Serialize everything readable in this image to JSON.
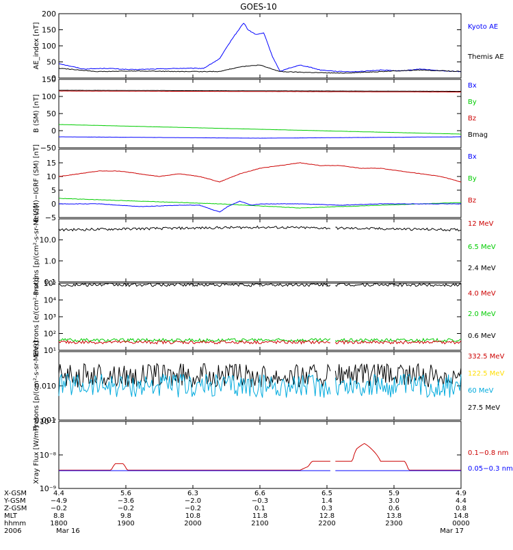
{
  "title": "GOES-10",
  "chart_data": [
    {
      "type": "line",
      "ylabel": "AE_index [nT]",
      "ylim": [
        0,
        200
      ],
      "yticks": [
        "0",
        "50",
        "100",
        "150",
        "200"
      ],
      "legend": [
        {
          "label": "Kyoto AE",
          "color": "#0000ff"
        },
        {
          "label": "Themis AE",
          "color": "#000000"
        }
      ],
      "series": [
        {
          "name": "Kyoto AE",
          "color": "#0000ff",
          "x": [
            0,
            0.06,
            0.12,
            0.18,
            0.24,
            0.3,
            0.36,
            0.4,
            0.43,
            0.46,
            0.47,
            0.49,
            0.51,
            0.53,
            0.55,
            0.57,
            0.6,
            0.62,
            0.65,
            0.7,
            0.75,
            0.8,
            0.85,
            0.9,
            0.95,
            1.0
          ],
          "y": [
            45,
            28,
            30,
            26,
            28,
            30,
            30,
            60,
            120,
            172,
            150,
            135,
            140,
            70,
            20,
            30,
            40,
            35,
            25,
            20,
            20,
            25,
            22,
            28,
            22,
            20
          ]
        },
        {
          "name": "Themis AE",
          "color": "#000000",
          "x": [
            0,
            0.1,
            0.2,
            0.3,
            0.4,
            0.45,
            0.5,
            0.55,
            0.6,
            0.7,
            0.8,
            0.9,
            1.0
          ],
          "y": [
            30,
            20,
            22,
            20,
            20,
            35,
            40,
            20,
            18,
            15,
            20,
            25,
            20
          ]
        }
      ]
    },
    {
      "type": "line",
      "ylabel": "B (SM) [nT]",
      "ylim": [
        -50,
        150
      ],
      "yticks": [
        "−50",
        "0",
        "50",
        "100",
        "150"
      ],
      "legend": [
        {
          "label": "Bx",
          "color": "#0000ff"
        },
        {
          "label": "By",
          "color": "#00cc00"
        },
        {
          "label": "Bz",
          "color": "#cc0000"
        },
        {
          "label": "Bmag",
          "color": "#000000"
        }
      ],
      "series": [
        {
          "name": "Bmag",
          "color": "#000000",
          "x": [
            0,
            1
          ],
          "y": [
            118,
            115
          ]
        },
        {
          "name": "Bz",
          "color": "#cc0000",
          "x": [
            0,
            1
          ],
          "y": [
            116,
            113
          ]
        },
        {
          "name": "By",
          "color": "#00cc00",
          "x": [
            0,
            1
          ],
          "y": [
            18,
            -10
          ]
        },
        {
          "name": "Bx",
          "color": "#0000ff",
          "x": [
            0,
            0.5,
            1
          ],
          "y": [
            -18,
            -22,
            -18
          ]
        }
      ]
    },
    {
      "type": "line",
      "ylabel": "B (SM)−IGRF (SM) [nT]",
      "ylim": [
        -5,
        20
      ],
      "yticks": [
        "−5",
        "0",
        "5",
        "10",
        "15"
      ],
      "legend": [
        {
          "label": "Bx",
          "color": "#0000ff"
        },
        {
          "label": "By",
          "color": "#00cc00"
        },
        {
          "label": "Bz",
          "color": "#cc0000"
        }
      ],
      "series": [
        {
          "name": "Bz",
          "color": "#cc0000",
          "x": [
            0,
            0.05,
            0.1,
            0.15,
            0.2,
            0.25,
            0.3,
            0.35,
            0.4,
            0.45,
            0.5,
            0.55,
            0.6,
            0.65,
            0.7,
            0.75,
            0.8,
            0.85,
            0.9,
            0.95,
            1.0
          ],
          "y": [
            10,
            11,
            12,
            12,
            11,
            10,
            11,
            10,
            8,
            11,
            13,
            14,
            15,
            14,
            14,
            13,
            13,
            12,
            11,
            10,
            8
          ]
        },
        {
          "name": "By",
          "color": "#00cc00",
          "x": [
            0,
            0.2,
            0.4,
            0.6,
            0.8,
            1.0
          ],
          "y": [
            2,
            1,
            0,
            -1.5,
            -0.5,
            0.5
          ]
        },
        {
          "name": "Bx",
          "color": "#0000ff",
          "x": [
            0,
            0.1,
            0.2,
            0.3,
            0.35,
            0.38,
            0.4,
            0.42,
            0.45,
            0.48,
            0.5,
            0.6,
            0.7,
            0.8,
            1.0
          ],
          "y": [
            0,
            0,
            -1,
            -0.5,
            -0.5,
            -2,
            -3,
            -1,
            1,
            -0.5,
            0,
            0,
            -0.5,
            0,
            0
          ]
        }
      ]
    },
    {
      "type": "line",
      "ylabel": "Protons [p/(cm²-s-sr-MeV)]",
      "yscale": "log",
      "ylim": [
        0.1,
        100
      ],
      "yticks": [
        "0.1",
        "1.0",
        "10.0"
      ],
      "legend": [
        {
          "label": "12 MeV",
          "color": "#cc0000"
        },
        {
          "label": "6.5 MeV",
          "color": "#00cc00"
        },
        {
          "label": "2.4 MeV",
          "color": "#000000"
        }
      ],
      "series": [
        {
          "name": "2.4 MeV",
          "color": "#000000",
          "x": [
            0,
            0.25,
            0.5,
            0.75,
            1.0
          ],
          "y": [
            30,
            35,
            40,
            35,
            30
          ]
        }
      ]
    },
    {
      "type": "line",
      "ylabel": "Electrons [e/(cm²-s-sr)]",
      "yscale": "log",
      "ylim": [
        10,
        100000
      ],
      "yticks": [
        "10¹",
        "10²",
        "10³",
        "10⁴",
        "10⁵"
      ],
      "legend": [
        {
          "label": "4.0 MeV",
          "color": "#cc0000"
        },
        {
          "label": "2.0 MeV",
          "color": "#00cc00"
        },
        {
          "label": "0.6 MeV",
          "color": "#000000"
        }
      ],
      "series": [
        {
          "name": "0.6 MeV",
          "color": "#000000",
          "x": [
            0,
            1
          ],
          "y": [
            80000,
            80000
          ]
        },
        {
          "name": "2.0 MeV",
          "color": "#00cc00",
          "x": [
            0,
            1
          ],
          "y": [
            40,
            40
          ]
        },
        {
          "name": "4.0 MeV",
          "color": "#cc0000",
          "x": [
            0,
            1
          ],
          "y": [
            30,
            30
          ]
        }
      ]
    },
    {
      "type": "line",
      "ylabel": "Protons [p/(cm²-s-sr-MeV)]",
      "yscale": "log",
      "ylim": [
        0.001,
        0.1
      ],
      "yticks": [
        "0.001",
        "0.010"
      ],
      "legend": [
        {
          "label": "332.5 MeV",
          "color": "#cc0000"
        },
        {
          "label": "122.5 MeV",
          "color": "#ffdd00"
        },
        {
          "label": "60 MeV",
          "color": "#00aadd"
        },
        {
          "label": "27.5 MeV",
          "color": "#000000"
        }
      ],
      "series": [
        {
          "name": "27.5 MeV",
          "color": "#000000",
          "x": [
            0,
            1
          ],
          "y": [
            0.02,
            0.02
          ]
        },
        {
          "name": "60 MeV",
          "color": "#00aadd",
          "x": [
            0,
            1
          ],
          "y": [
            0.01,
            0.01
          ]
        }
      ]
    },
    {
      "type": "line",
      "ylabel": "Xray Flux [W/m²]",
      "yscale": "log",
      "ylim": [
        1e-09,
        1e-07
      ],
      "yticks": [
        "10⁻⁹",
        "10⁻⁸",
        "10⁻⁷"
      ],
      "legend": [
        {
          "label": "0.1−0.8 nm",
          "color": "#cc0000"
        },
        {
          "label": "0.05−0.3 nm",
          "color": "#0000ff"
        }
      ],
      "series": [
        {
          "name": "0.1−0.8 nm",
          "color": "#cc0000",
          "x": [
            0,
            0.13,
            0.14,
            0.16,
            0.17,
            0.6,
            0.62,
            0.63,
            0.73,
            0.74,
            0.76,
            0.78,
            0.8,
            0.86,
            0.87,
            1.0
          ],
          "y": [
            3.5e-09,
            3.5e-09,
            5.5e-09,
            5.5e-09,
            3.5e-09,
            3.5e-09,
            4.5e-09,
            6.5e-09,
            6.5e-09,
            1.5e-08,
            2.2e-08,
            1.4e-08,
            6.5e-09,
            6.5e-09,
            3.5e-09,
            3.5e-09
          ]
        },
        {
          "name": "0.05−0.3 nm",
          "color": "#0000ff",
          "x": [
            0,
            1
          ],
          "y": [
            3.4e-09,
            3.4e-09
          ]
        }
      ]
    }
  ],
  "x_axis": {
    "row_labels": [
      "X-GSM",
      "Y-GSM",
      "Z-GSM",
      "MLT",
      "hhmm",
      "2006"
    ],
    "columns": [
      [
        "4.4",
        "−4.9",
        "−0.2",
        "8.8",
        "1800",
        "Mar 16"
      ],
      [
        "5.6",
        "−3.6",
        "−0.2",
        "9.8",
        "1900",
        ""
      ],
      [
        "6.3",
        "−2.0",
        "−0.2",
        "10.8",
        "2000",
        ""
      ],
      [
        "6.6",
        "−0.3",
        "0.1",
        "11.8",
        "2100",
        ""
      ],
      [
        "6.5",
        "1.4",
        "0.3",
        "12.8",
        "2200",
        ""
      ],
      [
        "5.9",
        "3.0",
        "0.6",
        "13.8",
        "2300",
        ""
      ],
      [
        "4.9",
        "4.4",
        "0.8",
        "14.8",
        "0000",
        "Mar 17"
      ]
    ]
  }
}
